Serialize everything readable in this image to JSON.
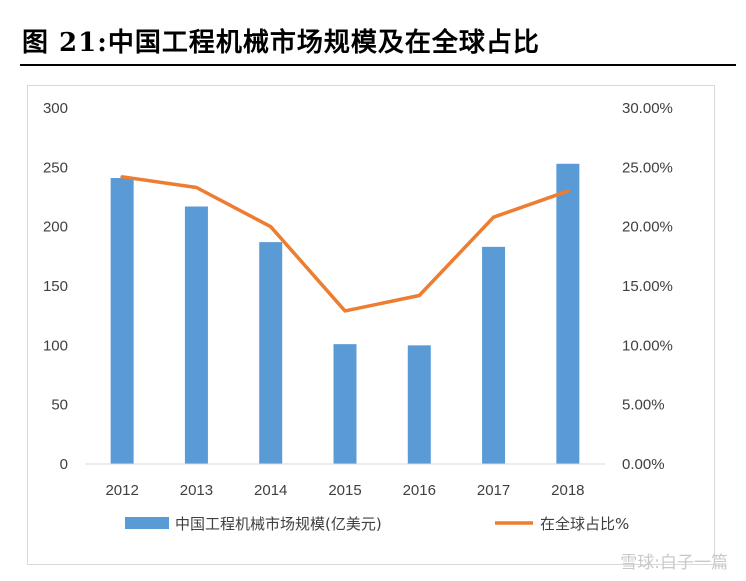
{
  "figure": {
    "title": "图 21:中国工程机械市场规模及在全球占比"
  },
  "footer": {
    "text": "雪球:白子一篇"
  },
  "colors": {
    "bar": "#5b9bd5",
    "line": "#ed7d31",
    "grid": "#d9d9d9",
    "text": "#404040"
  },
  "chart_data": {
    "type": "bar+line",
    "title": "",
    "xlabel": "",
    "ylabel": "",
    "categories": [
      "2012",
      "2013",
      "2014",
      "2015",
      "2016",
      "2017",
      "2018"
    ],
    "series": [
      {
        "name": "中国工程机械市场规模(亿美元)",
        "type": "bar",
        "axis": "left",
        "values": [
          241,
          217,
          187,
          101,
          100,
          183,
          253
        ]
      },
      {
        "name": "在全球占比%",
        "type": "line",
        "axis": "right",
        "values": [
          0.242,
          0.233,
          0.2,
          0.129,
          0.142,
          0.208,
          0.23
        ]
      }
    ],
    "ylim_left": [
      0,
      300
    ],
    "yticks_left": [
      "0",
      "50",
      "100",
      "150",
      "200",
      "250",
      "300"
    ],
    "ylim_right": [
      0,
      0.3
    ],
    "yticks_right": [
      "0.00%",
      "5.00%",
      "10.00%",
      "15.00%",
      "20.00%",
      "25.00%",
      "30.00%"
    ],
    "grid": false,
    "legend_position": "bottom"
  }
}
